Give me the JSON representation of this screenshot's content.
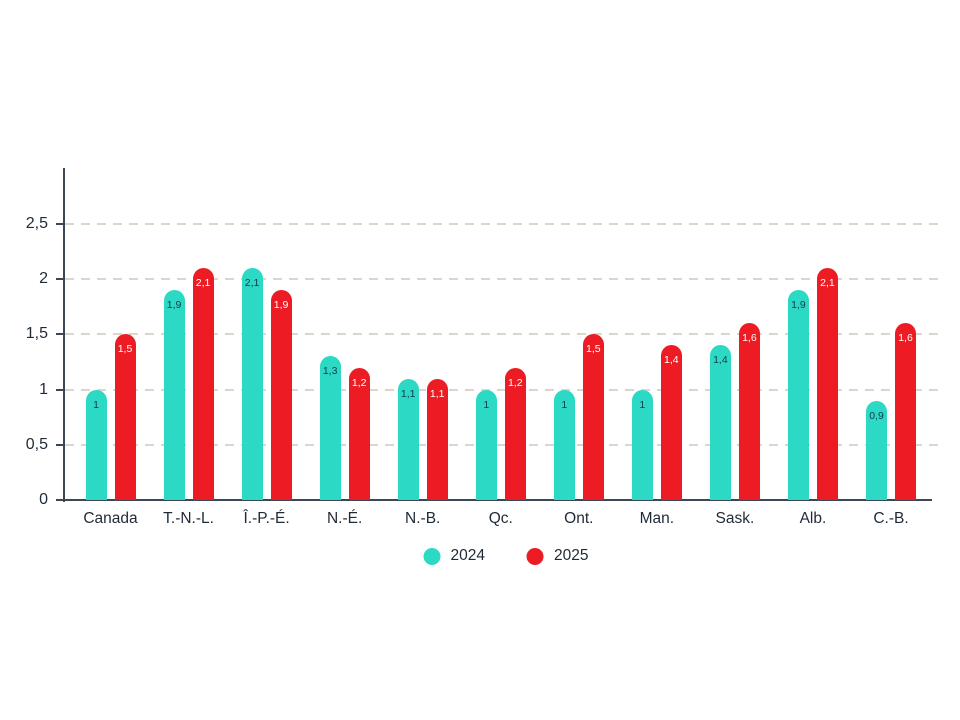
{
  "chart_data": {
    "type": "bar",
    "title": "",
    "xlabel": "",
    "ylabel": "",
    "categories": [
      "Canada",
      "T.-N.-L.",
      "Î.-P.-É.",
      "N.-É.",
      "N.-B.",
      "Qc.",
      "Ont.",
      "Man.",
      "Sask.",
      "Alb.",
      "C.-B."
    ],
    "series": [
      {
        "name": "2024",
        "color": "#2CD9C5",
        "label_color": "#123c4d",
        "values": [
          1,
          1.9,
          2.1,
          1.3,
          1.1,
          1,
          1,
          1,
          1.4,
          1.9,
          0.9
        ],
        "labels": [
          "1",
          "1,9",
          "2,1",
          "1,3",
          "1,1",
          "1",
          "1",
          "1",
          "1,4",
          "1,9",
          "0,9"
        ]
      },
      {
        "name": "2025",
        "color": "#ED1C24",
        "label_color": "#ffffff",
        "values": [
          1.5,
          2.1,
          1.9,
          1.2,
          1.1,
          1.2,
          1.5,
          1.4,
          1.6,
          2.1,
          1.6
        ],
        "labels": [
          "1,5",
          "2,1",
          "1,9",
          "1,2",
          "1,1",
          "1,2",
          "1,5",
          "1,4",
          "1,6",
          "2,1",
          "1,6"
        ]
      }
    ],
    "y_axis": {
      "ticks": [
        0,
        0.5,
        1,
        1.5,
        2,
        2.5
      ],
      "tick_labels": [
        "0",
        "0,5",
        "1",
        "1,5",
        "2",
        "2,5"
      ],
      "ylim": [
        0,
        2.5
      ],
      "axis_top_value": 3.0
    },
    "grid": "horizontal dashed",
    "legend": {
      "position": "bottom",
      "entries": [
        {
          "label": "2024",
          "color": "#2CD9C5"
        },
        {
          "label": "2025",
          "color": "#ED1C24"
        }
      ]
    },
    "colors": {
      "background": "#ffffff",
      "axis": "#3a4754",
      "gridline": "#ded4c9",
      "text": "#1f2a37"
    }
  }
}
